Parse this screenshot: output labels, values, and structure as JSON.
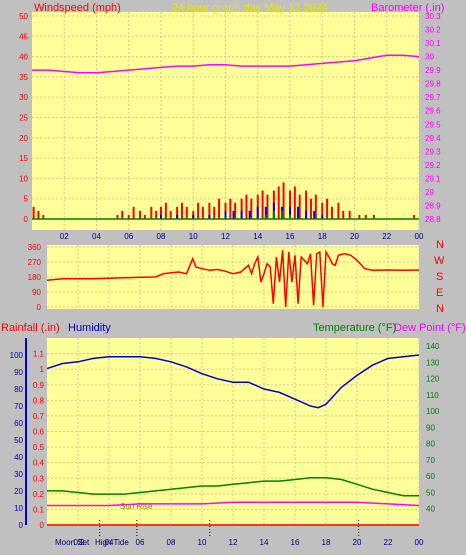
{
  "colors": {
    "background": "#c0c0c0",
    "plot_bg": "#ffff99",
    "grid": "#d6c88a",
    "wind": "#ff0000",
    "gust_alt": "#0000ff",
    "calm": "#008000",
    "barometer": "#ff00ff",
    "direction": "#ff0000",
    "humidity": "#0000d0",
    "temperature": "#008000",
    "dew_point": "#ff00ff",
    "rainfall": "#ff0000",
    "title_text": "#e6e600",
    "markers": "#000000"
  },
  "chart_data": [
    {
      "id": "wind_baro",
      "type": "line",
      "title": "24 hour graph day   May 12 2024",
      "ylabel_left": "Windspeed (mph)",
      "ylabel_right": "Barometer (.in)",
      "x_ticks": [
        "02",
        "04",
        "06",
        "08",
        "10",
        "12",
        "14",
        "16",
        "18",
        "20",
        "22",
        "00"
      ],
      "xlim": [
        0,
        24
      ],
      "ylim_left": [
        0,
        50
      ],
      "yticks_left": [
        "0",
        "5",
        "10",
        "15",
        "20",
        "25",
        "30",
        "35",
        "40",
        "45",
        "50"
      ],
      "ylim_right": [
        28.8,
        30.3
      ],
      "yticks_right": [
        "28.8",
        "28.9",
        "29",
        "29.1",
        "29.2",
        "29.3",
        "29.4",
        "29.5",
        "29.6",
        "29.7",
        "29.8",
        "29.9",
        "30",
        "30.1",
        "30.2",
        "30.3"
      ],
      "series": [
        {
          "axis": "right",
          "color": "#ff00ff",
          "points": [
            [
              0,
              29.9
            ],
            [
              1,
              29.9
            ],
            [
              2,
              29.89
            ],
            [
              3,
              29.88
            ],
            [
              4,
              29.88
            ],
            [
              5,
              29.89
            ],
            [
              6,
              29.9
            ],
            [
              7,
              29.91
            ],
            [
              8,
              29.92
            ],
            [
              9,
              29.93
            ],
            [
              10,
              29.93
            ],
            [
              11,
              29.94
            ],
            [
              12,
              29.94
            ],
            [
              13,
              29.93
            ],
            [
              14,
              29.93
            ],
            [
              15,
              29.93
            ],
            [
              16,
              29.93
            ],
            [
              17,
              29.94
            ],
            [
              18,
              29.95
            ],
            [
              19,
              29.96
            ],
            [
              20,
              29.97
            ],
            [
              21,
              29.99
            ],
            [
              22,
              30.01
            ],
            [
              23,
              30.01
            ],
            [
              24,
              30.0
            ]
          ]
        },
        {
          "axis": "left",
          "color": "#ff0000",
          "style": "bars",
          "points": [
            [
              0.1,
              3
            ],
            [
              0.4,
              2
            ],
            [
              0.7,
              1
            ],
            [
              5.3,
              1
            ],
            [
              5.6,
              2
            ],
            [
              6.0,
              1
            ],
            [
              6.3,
              3
            ],
            [
              6.7,
              2
            ],
            [
              7.0,
              1
            ],
            [
              7.4,
              3
            ],
            [
              7.7,
              2
            ],
            [
              8.0,
              3
            ],
            [
              8.3,
              4
            ],
            [
              8.6,
              2
            ],
            [
              9.0,
              3
            ],
            [
              9.3,
              4
            ],
            [
              9.6,
              3
            ],
            [
              10.0,
              2
            ],
            [
              10.3,
              4
            ],
            [
              10.6,
              3
            ],
            [
              11.0,
              4
            ],
            [
              11.3,
              3
            ],
            [
              11.6,
              5
            ],
            [
              12.0,
              4
            ],
            [
              12.3,
              5
            ],
            [
              12.6,
              4
            ],
            [
              13.0,
              5
            ],
            [
              13.3,
              6
            ],
            [
              13.6,
              5
            ],
            [
              14.0,
              6
            ],
            [
              14.3,
              7
            ],
            [
              14.6,
              6
            ],
            [
              15.0,
              7
            ],
            [
              15.3,
              8
            ],
            [
              15.6,
              9
            ],
            [
              16.0,
              7
            ],
            [
              16.3,
              8
            ],
            [
              16.6,
              6
            ],
            [
              17.0,
              7
            ],
            [
              17.3,
              5
            ],
            [
              17.6,
              6
            ],
            [
              18.0,
              4
            ],
            [
              18.3,
              5
            ],
            [
              18.6,
              3
            ],
            [
              19.0,
              4
            ],
            [
              19.3,
              2
            ],
            [
              19.7,
              2
            ],
            [
              20.3,
              1
            ],
            [
              20.7,
              1
            ],
            [
              21.2,
              1
            ],
            [
              23.7,
              1
            ]
          ]
        },
        {
          "axis": "left",
          "color": "#0000ff",
          "style": "bars",
          "points": [
            [
              8.0,
              1
            ],
            [
              9.0,
              1
            ],
            [
              10.0,
              1
            ],
            [
              11.0,
              1
            ],
            [
              12.0,
              2
            ],
            [
              12.5,
              2
            ],
            [
              13.0,
              2
            ],
            [
              13.5,
              2
            ],
            [
              14.0,
              3
            ],
            [
              14.5,
              3
            ],
            [
              15.0,
              4
            ],
            [
              15.5,
              3
            ],
            [
              16.0,
              3
            ],
            [
              16.5,
              3
            ],
            [
              17.0,
              2
            ],
            [
              17.5,
              2
            ],
            [
              18.0,
              1
            ]
          ]
        },
        {
          "axis": "left",
          "color": "#008000",
          "style": "bars",
          "points": [
            [
              14.5,
              1
            ],
            [
              15.0,
              2
            ],
            [
              15.5,
              2
            ],
            [
              16.0,
              1
            ]
          ]
        }
      ]
    },
    {
      "id": "direction",
      "type": "line",
      "ylabel_right": "N W S E N",
      "ylim": [
        0,
        360
      ],
      "yticks": [
        "0",
        "90",
        "180",
        "270",
        "360"
      ],
      "xlim": [
        0,
        24
      ],
      "series": [
        {
          "color": "#ff0000",
          "points": [
            [
              0,
              160
            ],
            [
              1,
              170
            ],
            [
              3,
              170
            ],
            [
              5,
              175
            ],
            [
              6,
              178
            ],
            [
              7,
              180
            ],
            [
              7.5,
              200
            ],
            [
              8,
              205
            ],
            [
              8.5,
              210
            ],
            [
              9,
              200
            ],
            [
              9.4,
              290
            ],
            [
              9.6,
              240
            ],
            [
              10,
              230
            ],
            [
              10.5,
              220
            ],
            [
              11,
              225
            ],
            [
              11.5,
              215
            ],
            [
              12,
              200
            ],
            [
              12.5,
              210
            ],
            [
              13,
              250
            ],
            [
              13.2,
              200
            ],
            [
              13.4,
              260
            ],
            [
              13.6,
              300
            ],
            [
              13.8,
              150
            ],
            [
              14,
              200
            ],
            [
              14.2,
              260
            ],
            [
              14.4,
              240
            ],
            [
              14.6,
              20
            ],
            [
              14.8,
              300
            ],
            [
              15.0,
              150
            ],
            [
              15.2,
              340
            ],
            [
              15.4,
              0
            ],
            [
              15.6,
              330
            ],
            [
              15.8,
              150
            ],
            [
              16.0,
              310
            ],
            [
              16.2,
              20
            ],
            [
              16.4,
              300
            ],
            [
              16.6,
              280
            ],
            [
              16.8,
              260
            ],
            [
              17.0,
              320
            ],
            [
              17.2,
              10
            ],
            [
              17.4,
              320
            ],
            [
              17.6,
              330
            ],
            [
              17.8,
              0
            ],
            [
              18.0,
              330
            ],
            [
              18.2,
              300
            ],
            [
              18.4,
              260
            ],
            [
              18.6,
              250
            ],
            [
              18.8,
              310
            ],
            [
              19.2,
              320
            ],
            [
              19.6,
              310
            ],
            [
              20.0,
              280
            ],
            [
              20.5,
              230
            ],
            [
              21,
              220
            ],
            [
              22,
              222
            ],
            [
              23,
              220
            ],
            [
              24,
              222
            ]
          ]
        }
      ]
    },
    {
      "id": "temp_hum_rain",
      "type": "line",
      "ylabel_left_1": "Rainfall (.in)",
      "ylabel_left_2": "Humidity",
      "ylabel_right_1": "Temperature (°F)",
      "ylabel_right_2": "Dew Point (°F)",
      "x_ticks": [
        "02",
        "04",
        "06",
        "08",
        "10",
        "12",
        "14",
        "16",
        "18",
        "20",
        "22",
        "00"
      ],
      "xlim": [
        0,
        24
      ],
      "ylim_rain": [
        0,
        1.2
      ],
      "yticks_rain": [
        "0",
        "0.1",
        "0.2",
        "0.3",
        "0.4",
        "0.5",
        "0.6",
        "0.7",
        "0.8",
        "0.9",
        "1",
        "1.1"
      ],
      "ylim_humidity": [
        0,
        110
      ],
      "yticks_humidity": [
        "0",
        "10",
        "20",
        "30",
        "40",
        "50",
        "60",
        "70",
        "80",
        "90",
        "100"
      ],
      "ylim_temp": [
        30,
        145
      ],
      "yticks_temp": [
        "40",
        "50",
        "60",
        "70",
        "80",
        "90",
        "100",
        "110",
        "120",
        "130",
        "140"
      ],
      "series": [
        {
          "axis": "humidity",
          "color": "#0000d0",
          "points": [
            [
              0,
              92
            ],
            [
              1,
              95
            ],
            [
              2,
              96
            ],
            [
              3,
              98
            ],
            [
              4,
              99
            ],
            [
              5,
              99
            ],
            [
              6,
              99
            ],
            [
              7,
              98
            ],
            [
              8,
              96
            ],
            [
              9,
              93
            ],
            [
              10,
              89
            ],
            [
              11,
              86
            ],
            [
              12,
              84
            ],
            [
              13,
              84
            ],
            [
              14,
              80
            ],
            [
              15,
              78
            ],
            [
              16,
              74
            ],
            [
              17,
              70
            ],
            [
              17.5,
              69
            ],
            [
              18,
              71
            ],
            [
              18.5,
              76
            ],
            [
              19,
              81
            ],
            [
              20,
              88
            ],
            [
              21,
              94
            ],
            [
              22,
              98
            ],
            [
              23,
              99
            ],
            [
              24,
              100
            ]
          ]
        },
        {
          "axis": "temp",
          "color": "#008000",
          "points": [
            [
              0,
              51
            ],
            [
              1,
              51
            ],
            [
              2,
              50
            ],
            [
              3,
              49
            ],
            [
              4,
              49
            ],
            [
              5,
              49
            ],
            [
              6,
              50
            ],
            [
              7,
              51
            ],
            [
              8,
              52
            ],
            [
              9,
              53
            ],
            [
              10,
              54
            ],
            [
              11,
              54
            ],
            [
              12,
              55
            ],
            [
              13,
              56
            ],
            [
              14,
              57
            ],
            [
              15,
              57
            ],
            [
              16,
              58
            ],
            [
              17,
              59
            ],
            [
              18,
              59
            ],
            [
              19,
              58
            ],
            [
              20,
              55
            ],
            [
              21,
              52
            ],
            [
              22,
              50
            ],
            [
              23,
              48
            ],
            [
              24,
              48
            ]
          ]
        },
        {
          "axis": "temp",
          "color": "#ff00ff",
          "points": [
            [
              0,
              42
            ],
            [
              2,
              42
            ],
            [
              4,
              42
            ],
            [
              6,
              43
            ],
            [
              8,
              43
            ],
            [
              10,
              43
            ],
            [
              12,
              44
            ],
            [
              14,
              44
            ],
            [
              16,
              44
            ],
            [
              18,
              44
            ],
            [
              20,
              44
            ],
            [
              22,
              43
            ],
            [
              24,
              42
            ]
          ]
        },
        {
          "axis": "rain",
          "color": "#ff0000",
          "points": [
            [
              0,
              0
            ],
            [
              24,
              0
            ]
          ]
        }
      ],
      "annotations": {
        "sun_rise": "Sun Rise",
        "moon_set": "Moon Set",
        "high_tide": "High Tide",
        "two": "2"
      }
    }
  ]
}
